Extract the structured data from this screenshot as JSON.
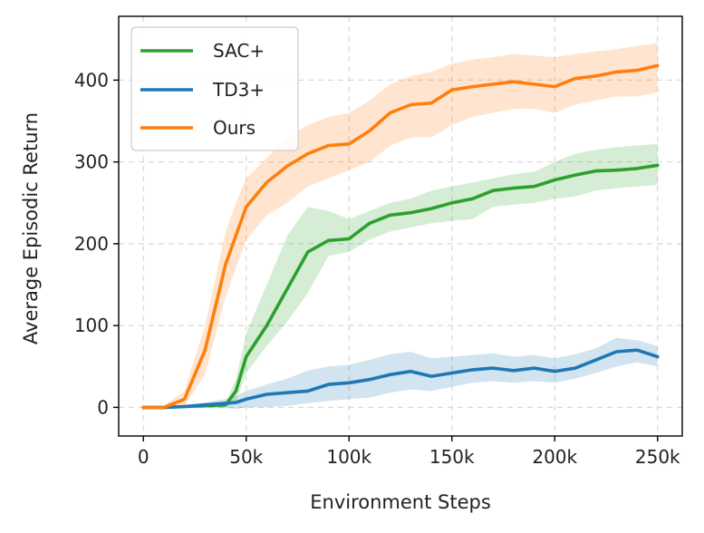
{
  "chart_data": {
    "type": "line",
    "title": "",
    "xlabel": "Environment Steps",
    "ylabel": "Average Episodic Return",
    "xlim": [
      -12000,
      262000
    ],
    "ylim": [
      -35,
      478
    ],
    "xticks": [
      0,
      50000,
      100000,
      150000,
      200000,
      250000
    ],
    "xtick_labels": [
      "0",
      "50k",
      "100k",
      "150k",
      "200k",
      "250k"
    ],
    "yticks": [
      0,
      100,
      200,
      300,
      400
    ],
    "ytick_labels": [
      "0",
      "100",
      "200",
      "300",
      "400"
    ],
    "grid": true,
    "legend_position": "top-left",
    "x": [
      0,
      10000,
      20000,
      30000,
      40000,
      45000,
      50000,
      60000,
      70000,
      80000,
      90000,
      100000,
      110000,
      120000,
      130000,
      140000,
      150000,
      160000,
      170000,
      180000,
      190000,
      200000,
      210000,
      220000,
      230000,
      240000,
      250000
    ],
    "series": [
      {
        "name": "SAC+",
        "color": "#2ca02c",
        "values": [
          0,
          0,
          1,
          2,
          3,
          20,
          62,
          100,
          145,
          190,
          204,
          206,
          225,
          235,
          238,
          243,
          250,
          255,
          265,
          268,
          270,
          278,
          284,
          289,
          290,
          292,
          296
        ],
        "lower": [
          0,
          0,
          -1,
          0,
          0,
          8,
          42,
          75,
          105,
          140,
          185,
          190,
          205,
          215,
          220,
          225,
          228,
          230,
          245,
          248,
          250,
          255,
          258,
          265,
          268,
          270,
          272
        ],
        "upper": [
          0,
          1,
          2,
          4,
          6,
          35,
          90,
          150,
          210,
          245,
          240,
          230,
          240,
          250,
          255,
          265,
          270,
          275,
          280,
          285,
          288,
          300,
          310,
          315,
          318,
          320,
          322
        ]
      },
      {
        "name": "TD3+",
        "color": "#1f77b4",
        "values": [
          0,
          0,
          1,
          3,
          5,
          6,
          10,
          16,
          18,
          20,
          28,
          30,
          34,
          40,
          44,
          38,
          42,
          46,
          48,
          45,
          48,
          44,
          48,
          58,
          68,
          70,
          62
        ],
        "lower": [
          0,
          -1,
          -1,
          -1,
          -1,
          -2,
          0,
          0,
          2,
          5,
          8,
          10,
          12,
          18,
          22,
          20,
          25,
          30,
          32,
          30,
          32,
          30,
          35,
          42,
          50,
          55,
          50
        ],
        "upper": [
          0,
          1,
          3,
          6,
          10,
          14,
          20,
          28,
          35,
          45,
          50,
          52,
          58,
          65,
          68,
          60,
          62,
          64,
          66,
          62,
          64,
          60,
          65,
          72,
          85,
          82,
          75
        ]
      },
      {
        "name": "Ours",
        "color": "#ff7f0e",
        "values": [
          0,
          0,
          10,
          70,
          175,
          210,
          245,
          275,
          295,
          310,
          320,
          322,
          338,
          360,
          370,
          372,
          388,
          392,
          395,
          398,
          395,
          392,
          402,
          405,
          410,
          412,
          418
        ],
        "lower": [
          0,
          -1,
          2,
          40,
          135,
          170,
          205,
          235,
          250,
          270,
          280,
          290,
          300,
          320,
          330,
          330,
          345,
          355,
          360,
          365,
          365,
          360,
          370,
          375,
          380,
          380,
          385
        ],
        "upper": [
          0,
          2,
          20,
          100,
          215,
          250,
          280,
          305,
          330,
          345,
          355,
          360,
          375,
          395,
          405,
          410,
          420,
          425,
          428,
          432,
          430,
          428,
          432,
          435,
          438,
          442,
          445
        ]
      }
    ]
  }
}
